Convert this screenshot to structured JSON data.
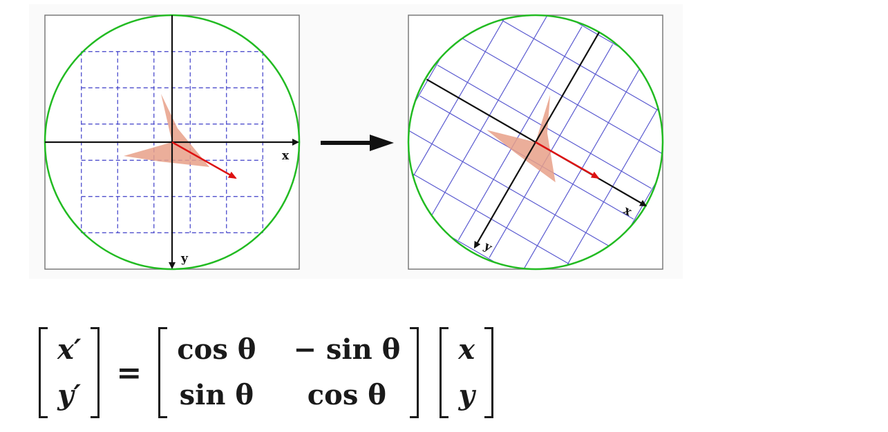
{
  "diagram": {
    "arrow_icon": "right-arrow",
    "panels": [
      {
        "name": "original",
        "x_axis_label": "x",
        "y_axis_label": "y",
        "grid_style": "dashed",
        "grid_color": "#3c3cc8",
        "circle_color": "#22bb22",
        "shape_color": "#e8a088",
        "vector_color": "#dd1111",
        "rotation_deg": 0
      },
      {
        "name": "rotated",
        "x_axis_label": "x",
        "y_axis_label": "y",
        "grid_style": "solid",
        "grid_color": "#5a5ad0",
        "circle_color": "#22bb22",
        "shape_color": "#e8a088",
        "vector_color": "#dd1111",
        "rotation_deg": 30
      }
    ]
  },
  "equation": {
    "lhs": [
      "x′",
      "y′"
    ],
    "equals": "=",
    "matrix": [
      [
        "cos θ",
        "− sin θ"
      ],
      [
        "sin θ",
        "cos θ"
      ]
    ],
    "rhs": [
      "x",
      "y"
    ]
  }
}
